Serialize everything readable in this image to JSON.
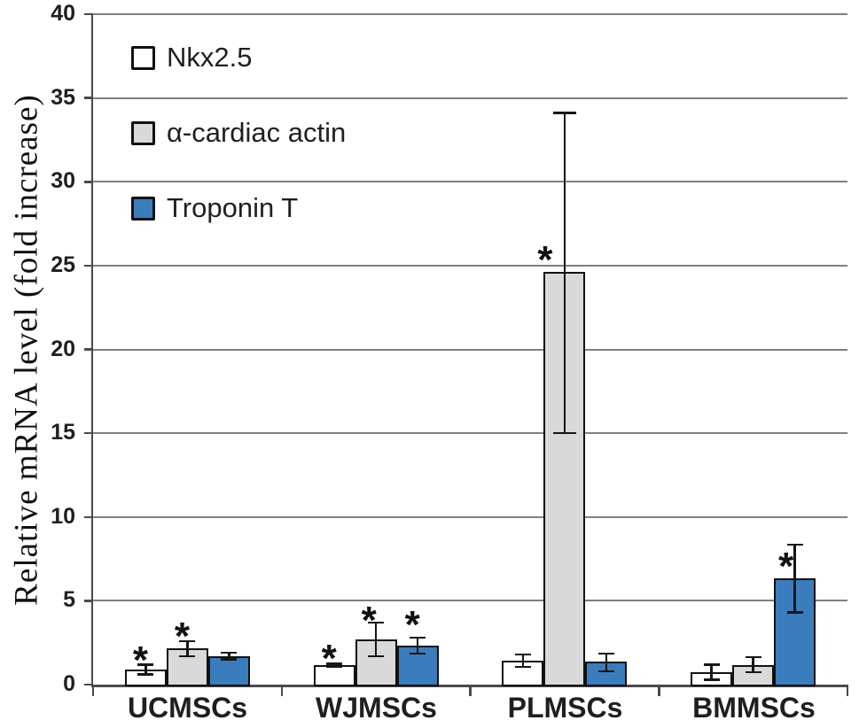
{
  "figure_name": "mrna-expression-bar-chart",
  "chart_data": {
    "type": "bar",
    "title": "",
    "xlabel": "",
    "ylabel": "Relative mRNA level (fold increase)",
    "ylim": [
      0,
      40
    ],
    "yticks": [
      0,
      5,
      10,
      15,
      20,
      25,
      30,
      35,
      40
    ],
    "grid": "horizontal",
    "legend_position": "top-left",
    "sig_marker": "*",
    "categories": [
      "UCMSCs",
      "WJMSCs",
      "PLMSCs",
      "BMMSCs"
    ],
    "series": [
      {
        "name": "Nkx2.5",
        "color": "#ffffff",
        "values": [
          0.9,
          1.15,
          1.45,
          0.75
        ],
        "errors_up": [
          0.3,
          0.1,
          0.35,
          0.45
        ],
        "errors_down": [
          0.3,
          0.1,
          0.4,
          0.45
        ],
        "significant": [
          true,
          true,
          false,
          false
        ],
        "sig_y": [
          1.8,
          1.9,
          null,
          null
        ],
        "sig_dx": [
          -6,
          -6,
          0,
          0
        ]
      },
      {
        "name": "α-cardiac actin",
        "color": "#d9d9d9",
        "values": [
          2.15,
          2.7,
          24.6,
          1.15
        ],
        "errors_up": [
          0.45,
          1.0,
          9.5,
          0.5
        ],
        "errors_down": [
          0.45,
          1.0,
          9.6,
          0.4
        ],
        "significant": [
          true,
          true,
          true,
          false
        ],
        "sig_y": [
          3.2,
          4.2,
          25.7,
          null
        ],
        "sig_dx": [
          -6,
          -8,
          -22,
          0
        ]
      },
      {
        "name": "Troponin T",
        "color": "#3b7cbd",
        "values": [
          1.7,
          2.35,
          1.35,
          6.35
        ],
        "errors_up": [
          0.2,
          0.45,
          0.5,
          2.0
        ],
        "errors_down": [
          0.2,
          0.5,
          0.55,
          2.05
        ],
        "significant": [
          false,
          true,
          false,
          true
        ],
        "sig_y": [
          null,
          3.9,
          null,
          7.4
        ],
        "sig_dx": [
          0,
          -6,
          0,
          -10
        ]
      }
    ],
    "colors": {
      "axis": "#4a4a4a",
      "gridline": "#7f7f7f",
      "bar_border": "#111111",
      "error_bar": "#161616",
      "text": "#1f1f1f"
    }
  }
}
